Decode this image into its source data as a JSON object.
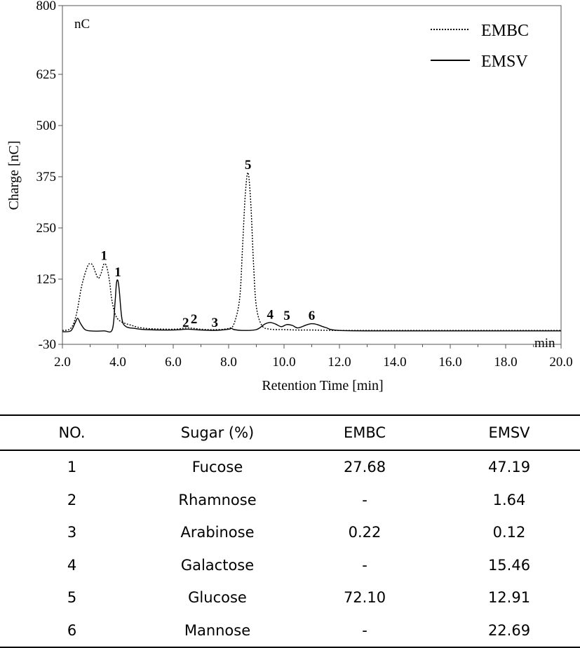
{
  "chart_data": {
    "type": "line",
    "ylabel": "Charge [nC]",
    "xlabel": "Retention Time [min]",
    "y_unit": "nC",
    "x_unit": "min",
    "xlim": [
      2.0,
      20.0
    ],
    "ylim": [
      -30,
      800
    ],
    "x_ticks": [
      "2.0",
      "4.0",
      "6.0",
      "8.0",
      "10.0",
      "12.0",
      "14.0",
      "16.0",
      "18.0",
      "20.0"
    ],
    "y_ticks": [
      "-30",
      "125",
      "250",
      "375",
      "500",
      "625",
      "800"
    ],
    "legend_position": "top-right",
    "series": [
      {
        "name": "EMBC",
        "style": "dotted",
        "x": [
          2.0,
          2.3,
          2.5,
          2.7,
          2.9,
          3.0,
          3.1,
          3.2,
          3.3,
          3.4,
          3.5,
          3.6,
          3.7,
          3.8,
          4.0,
          4.5,
          5.0,
          6.0,
          6.5,
          7.0,
          7.5,
          8.0,
          8.2,
          8.4,
          8.5,
          8.6,
          8.7,
          8.8,
          8.9,
          9.0,
          9.2,
          9.5,
          10.0,
          10.5,
          11.0,
          12.0,
          14.0,
          16.0,
          18.0,
          20.0
        ],
        "y": [
          3,
          8,
          40,
          110,
          155,
          163,
          158,
          140,
          127,
          140,
          162,
          155,
          120,
          70,
          30,
          15,
          8,
          6,
          9,
          6,
          5,
          8,
          20,
          80,
          200,
          330,
          385,
          310,
          160,
          60,
          15,
          6,
          5,
          4,
          4,
          3,
          3,
          3,
          3,
          3
        ]
      },
      {
        "name": "EMSV",
        "style": "solid",
        "x": [
          2.0,
          2.3,
          2.45,
          2.55,
          2.65,
          2.8,
          3.0,
          3.5,
          3.8,
          3.9,
          3.95,
          4.0,
          4.05,
          4.15,
          4.3,
          4.6,
          5.0,
          6.0,
          6.5,
          7.0,
          7.5,
          8.0,
          8.1,
          8.2,
          8.5,
          9.0,
          9.3,
          9.5,
          9.7,
          9.9,
          10.1,
          10.3,
          10.5,
          10.8,
          11.0,
          11.2,
          11.5,
          12.0,
          14.0,
          16.0,
          18.0,
          20.0
        ],
        "y": [
          0,
          2,
          20,
          32,
          20,
          6,
          2,
          2,
          5,
          70,
          115,
          122,
          100,
          30,
          12,
          8,
          5,
          4,
          6,
          4,
          3,
          6,
          8,
          5,
          3,
          5,
          18,
          22,
          18,
          12,
          17,
          15,
          9,
          16,
          19,
          17,
          10,
          3,
          2,
          2,
          2,
          2
        ]
      }
    ],
    "annotations": [
      {
        "label": "1",
        "x": 3.5,
        "y": 172,
        "series": "EMBC"
      },
      {
        "label": "1",
        "x": 4.0,
        "y": 132,
        "series": "EMSV"
      },
      {
        "label": "2",
        "x": 6.45,
        "y": 12
      },
      {
        "label": "2",
        "x": 6.75,
        "y": 20
      },
      {
        "label": "3",
        "x": 7.5,
        "y": 12
      },
      {
        "label": "5",
        "x": 8.7,
        "y": 394,
        "series": "EMBC"
      },
      {
        "label": "4",
        "x": 9.5,
        "y": 31
      },
      {
        "label": "5",
        "x": 10.1,
        "y": 28
      },
      {
        "label": "6",
        "x": 11.0,
        "y": 28
      }
    ]
  },
  "table": {
    "headers": [
      "NO.",
      "Sugar (%)",
      "EMBC",
      "EMSV"
    ],
    "rows": [
      [
        "1",
        "Fucose",
        "27.68",
        "47.19"
      ],
      [
        "2",
        "Rhamnose",
        "-",
        "1.64"
      ],
      [
        "3",
        "Arabinose",
        "0.22",
        "0.12"
      ],
      [
        "4",
        "Galactose",
        "-",
        "15.46"
      ],
      [
        "5",
        "Glucose",
        "72.10",
        "12.91"
      ],
      [
        "6",
        "Mannose",
        "-",
        "22.69"
      ]
    ]
  }
}
